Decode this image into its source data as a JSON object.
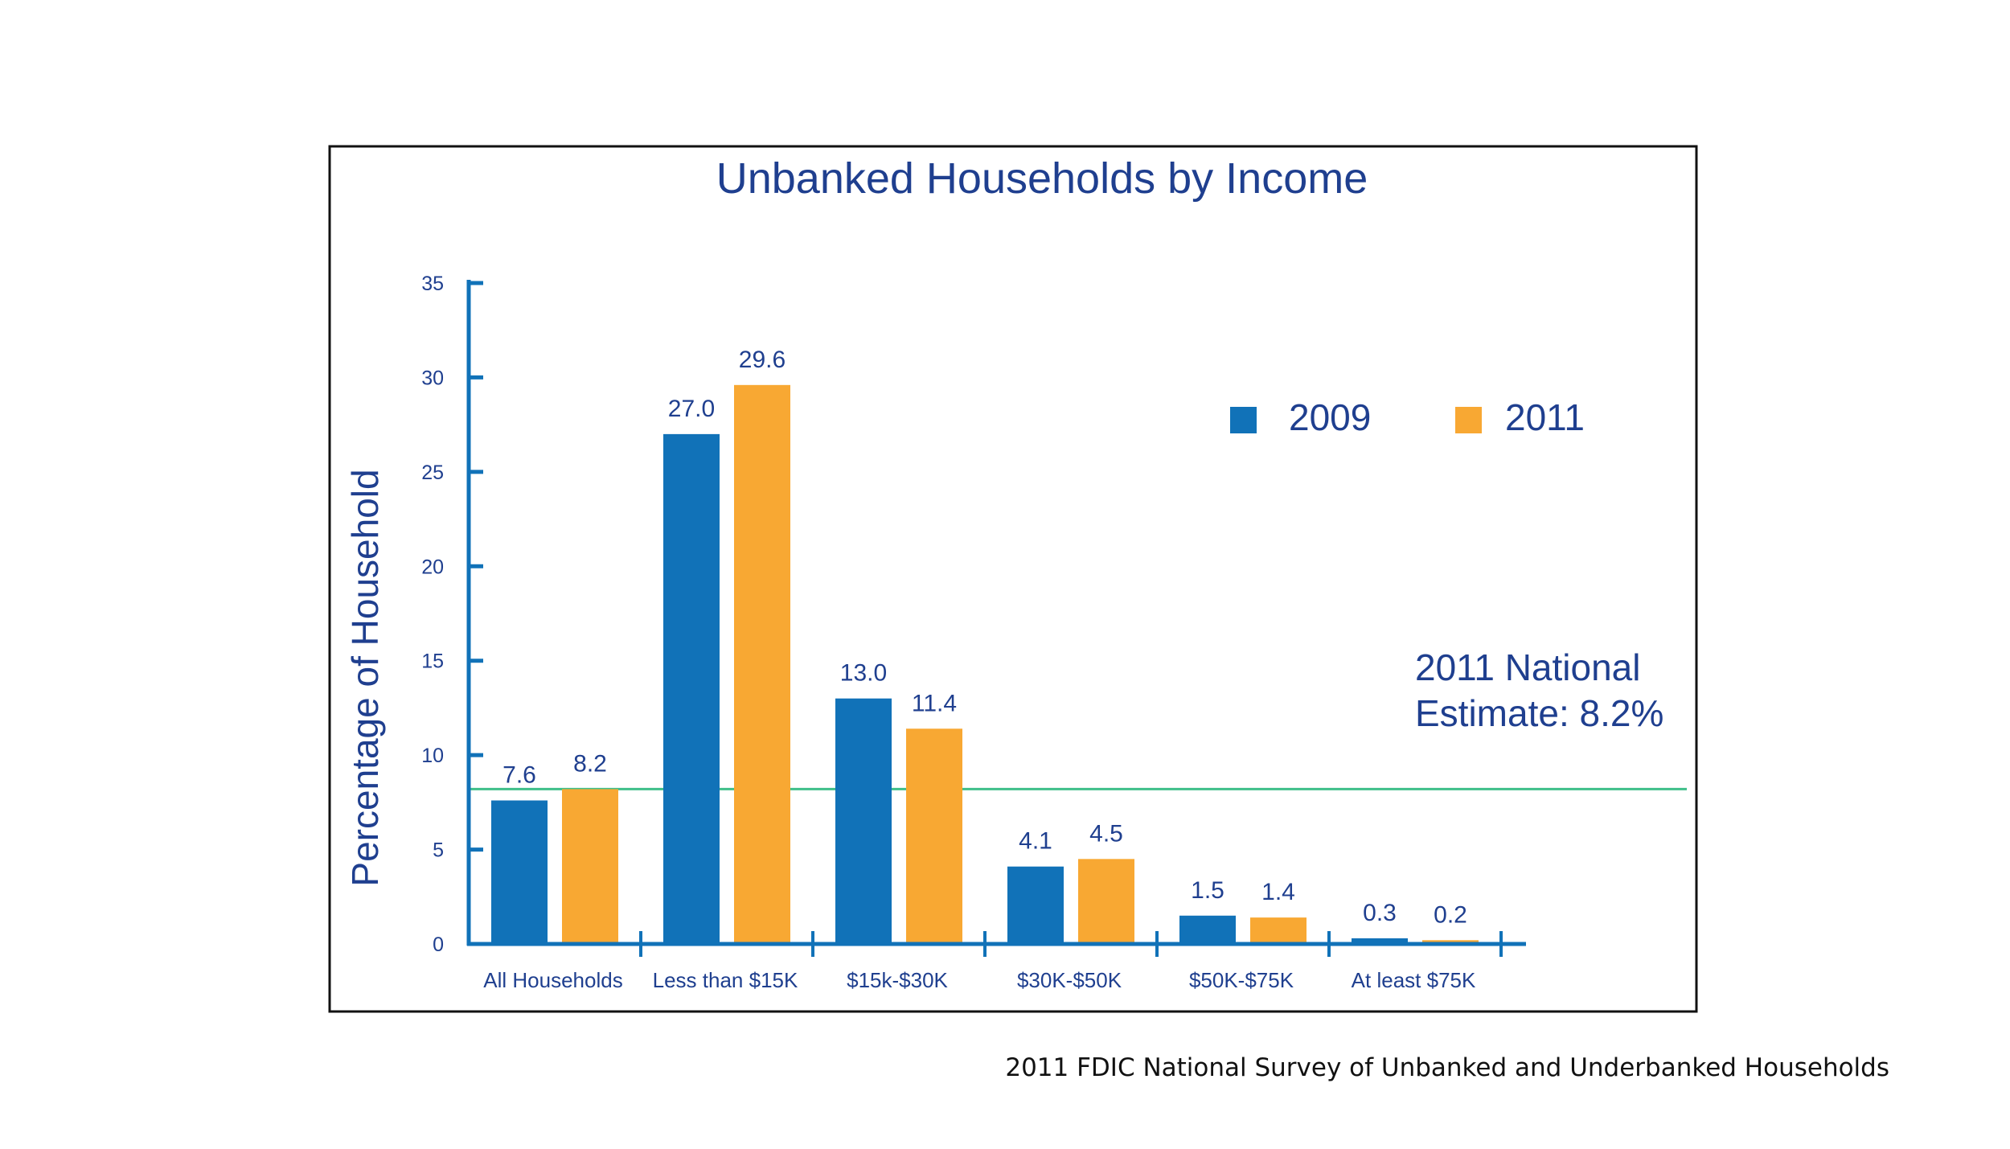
{
  "chart_data": {
    "type": "bar",
    "title": "Unbanked Households by Income",
    "xlabel": "",
    "ylabel": "Percentage of Household",
    "ylim": [
      0,
      35
    ],
    "yticks": [
      0,
      5,
      10,
      15,
      20,
      25,
      30,
      35
    ],
    "categories": [
      "All Households",
      "Less than $15K",
      "$15k-$30K",
      "$30K-$50K",
      "$50K-$75K",
      "At least $75K"
    ],
    "series": [
      {
        "name": "2009",
        "color": "#1172b8",
        "values": [
          7.6,
          27.0,
          13.0,
          4.1,
          1.5,
          0.3
        ],
        "labels": [
          "7.6",
          "27.0",
          "13.0",
          "4.1",
          "1.5",
          "0.3"
        ]
      },
      {
        "name": "2011",
        "color": "#f8a833",
        "values": [
          8.2,
          29.6,
          11.4,
          4.5,
          1.4,
          0.2
        ],
        "labels": [
          "8.2",
          "29.6",
          "11.4",
          "4.5",
          "1.4",
          "0.2"
        ]
      }
    ],
    "reference_line": {
      "value": 8.2,
      "color": "#3fbf8a",
      "label_lines": [
        "2011 National",
        "Estimate: 8.2%"
      ]
    },
    "legend_position": "top-right",
    "grid": false,
    "text_color": "#1f3f8f",
    "axis_color": "#1172b8"
  },
  "source_note": "2011 FDIC National Survey of Unbanked and Underbanked Households"
}
